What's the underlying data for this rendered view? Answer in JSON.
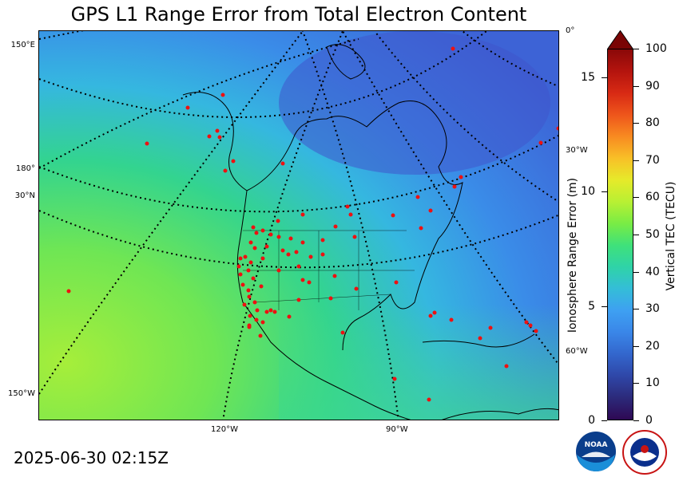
{
  "title": "GPS L1 Range Error from Total Electron Content",
  "timestamp": "2025-06-30 02:15Z",
  "map_labels": {
    "lon_150e": "150°E",
    "lon_180": "180°",
    "lat_30n": "30°N",
    "lon_150w": "150°W",
    "lon_120w": "120°W",
    "lon_90w": "90°W",
    "lon_0": "0°",
    "lon_30w": "30°W",
    "lon_60w": "60°W"
  },
  "colorbar": {
    "left_axis_label": "Ionosphere Range Error (m)",
    "right_axis_label": "Vertical TEC (TECU)",
    "left_ticks": [
      "0",
      "5",
      "10",
      "15"
    ],
    "right_ticks": [
      "0",
      "10",
      "20",
      "30",
      "40",
      "50",
      "60",
      "70",
      "80",
      "90",
      "100"
    ],
    "colors": [
      "#2e0854",
      "#2c2a7a",
      "#2f47a8",
      "#3366cc",
      "#3a86e8",
      "#3ea0f2",
      "#34bdd8",
      "#2fd3a8",
      "#3fe17a",
      "#78ec45",
      "#b8f033",
      "#e6ea2a",
      "#f8c027",
      "#f88a21",
      "#ee551b",
      "#d82a14",
      "#b4140e",
      "#8a0808"
    ]
  },
  "logos": {
    "noaa": "NOAA",
    "nws": "NATIONAL WEATHER SERVICE"
  }
}
